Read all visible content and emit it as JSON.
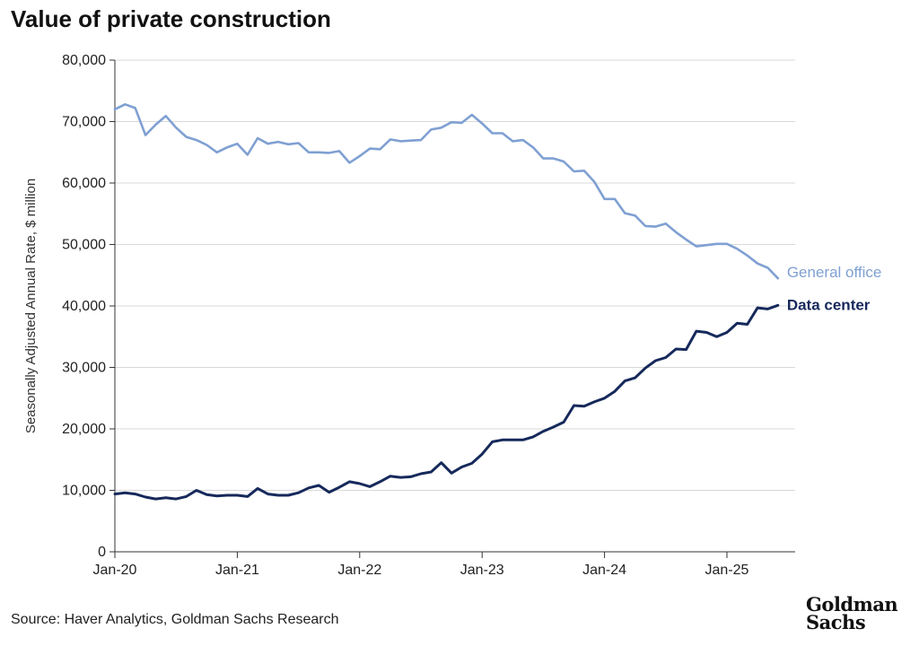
{
  "title": "Value of private construction",
  "source": "Source: Haver Analytics, Goldman Sachs Research",
  "logo": {
    "line1": "Goldman",
    "line2": "Sachs"
  },
  "chart_data": {
    "type": "line",
    "title": "Value of private construction",
    "xlabel": "",
    "ylabel": "Seasonally Adjusted Annual Rate, $ million",
    "ylim": [
      0,
      80000
    ],
    "yticks": [
      0,
      10000,
      20000,
      30000,
      40000,
      50000,
      60000,
      70000,
      80000
    ],
    "ytick_labels": [
      "0",
      "10,000",
      "20,000",
      "30,000",
      "40,000",
      "50,000",
      "60,000",
      "70,000",
      "80,000"
    ],
    "x_start": "Jan-20",
    "x_end": "Jun-25",
    "xticks": [
      "Jan-20",
      "Jan-21",
      "Jan-22",
      "Jan-23",
      "Jan-24",
      "Jan-25"
    ],
    "grid": true,
    "legend": "inline labels at line ends",
    "colors": {
      "general_office": "#7fa0d2",
      "data_center": "#16295b",
      "grid": "#d9d9d9",
      "axis": "#333333"
    },
    "series": [
      {
        "name": "General office",
        "color": "#7fa0d2",
        "values": [
          72000,
          72800,
          72200,
          67800,
          69500,
          70900,
          69000,
          67500,
          67000,
          66200,
          65000,
          65800,
          66400,
          64600,
          67300,
          66400,
          66700,
          66300,
          66500,
          65000,
          65000,
          64900,
          65200,
          63300,
          64400,
          65600,
          65500,
          67100,
          66800,
          66900,
          67000,
          68700,
          69000,
          69900,
          69800,
          71100,
          69700,
          68100,
          68100,
          66800,
          67000,
          65800,
          64000,
          64000,
          63500,
          61900,
          62000,
          60200,
          57400,
          57400,
          55100,
          54700,
          53000,
          52900,
          53400,
          52000,
          50800,
          49700,
          49900,
          50100,
          50100,
          49300,
          48200,
          46900,
          46200,
          44500
        ]
      },
      {
        "name": "Data center",
        "color": "#16295b",
        "values": [
          9400,
          9600,
          9400,
          8900,
          8600,
          8800,
          8600,
          9000,
          10000,
          9300,
          9100,
          9200,
          9200,
          9000,
          10300,
          9400,
          9200,
          9200,
          9600,
          10400,
          10800,
          9700,
          10500,
          11400,
          11100,
          10600,
          11400,
          12300,
          12100,
          12200,
          12700,
          13000,
          14500,
          12800,
          13800,
          14400,
          15900,
          17900,
          18200,
          18200,
          18200,
          18700,
          19600,
          20300,
          21100,
          23800,
          23700,
          24400,
          25000,
          26100,
          27800,
          28300,
          29900,
          31100,
          31600,
          33000,
          32900,
          35900,
          35700,
          35000,
          35700,
          37200,
          37000,
          39700,
          39500,
          40100
        ]
      }
    ]
  }
}
